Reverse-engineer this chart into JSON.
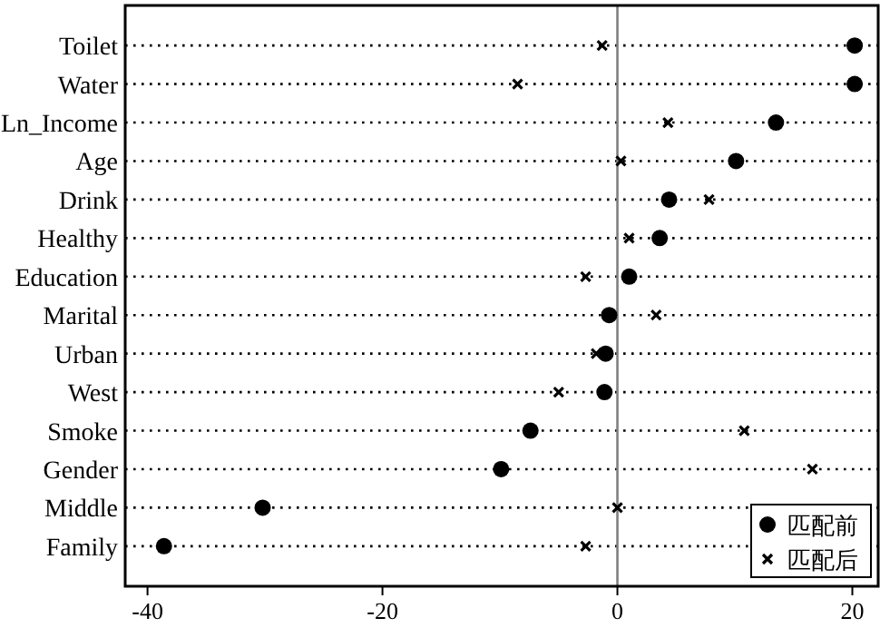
{
  "chart_data": {
    "type": "scatter",
    "orientation": "horizontal",
    "categories": [
      "Toilet",
      "Water",
      "Ln_Income",
      "Age",
      "Drink",
      "Healthy",
      "Education",
      "Marital",
      "Urban",
      "West",
      "Smoke",
      "Gender",
      "Middle",
      "Family"
    ],
    "series": [
      {
        "name": "匹配前",
        "color": "#000000",
        "marker": "circle",
        "values": [
          20.2,
          20.2,
          13.5,
          10.1,
          4.4,
          3.6,
          1.0,
          -0.7,
          -1.0,
          -1.1,
          -7.4,
          -9.9,
          -30.2,
          -38.6
        ]
      },
      {
        "name": "匹配后",
        "color": "#000000",
        "marker": "cross",
        "values": [
          -1.3,
          -8.5,
          4.3,
          0.3,
          7.8,
          1.0,
          -2.7,
          3.3,
          -1.8,
          -5.0,
          10.8,
          16.6,
          0.0,
          -2.7
        ]
      }
    ],
    "xlim": [
      -41.9,
      22.2
    ],
    "xticks": [
      -40,
      -20,
      0,
      20
    ],
    "ref_lines": [
      {
        "axis": "x",
        "value": 0,
        "color": "#808080"
      }
    ],
    "grid": "y",
    "legend": "bottom right"
  }
}
